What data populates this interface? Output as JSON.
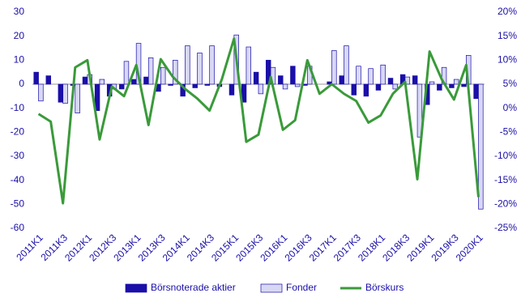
{
  "chart_data": {
    "type": "bar",
    "categories": [
      "2011K1",
      null,
      "2011K3",
      null,
      "2012K1",
      null,
      "2012K3",
      null,
      "2013K1",
      null,
      "2013K3",
      null,
      "2014K1",
      null,
      "2014K3",
      null,
      "2015K1",
      null,
      "2015K3",
      null,
      "2016K1",
      null,
      "2016K3",
      null,
      "2017K1",
      null,
      "2017K3",
      null,
      "2018K1",
      null,
      "2018K3",
      null,
      "2019K1",
      null,
      "2019K3",
      null,
      "2020K1"
    ],
    "series": [
      {
        "name": "Börsnoterade aktier",
        "type": "bar",
        "color": "#1a0fa8",
        "values": [
          5,
          3.5,
          -7.5,
          -0.5,
          3,
          -11,
          -5,
          -2,
          2,
          3,
          -3,
          -0.5,
          -5,
          -1.5,
          -0.5,
          -1,
          -4.5,
          -7.5,
          5,
          10,
          3.5,
          7.5,
          -0.5,
          0,
          1,
          3.5,
          -4.5,
          -5,
          -2.5,
          2.5,
          4,
          3.5,
          -8.5,
          -2.5,
          -1.5,
          -1,
          -6
        ]
      },
      {
        "name": "Fonder",
        "type": "bar",
        "color": "#d8d8f5",
        "values": [
          -7,
          0,
          -8,
          -12,
          4,
          2,
          -2,
          9.5,
          17,
          11,
          7,
          10,
          16,
          13,
          16,
          0,
          20.5,
          15.5,
          -4,
          7,
          -2,
          -1,
          7.5,
          0,
          14,
          16,
          7.5,
          6.5,
          8,
          -2,
          3,
          -22,
          1,
          7,
          2,
          12,
          -52
        ]
      },
      {
        "name": "Börskurs",
        "type": "line",
        "axis": "y2",
        "color": "#3a9a3a",
        "values": [
          -1.2,
          -2.8,
          -19.8,
          8.5,
          10,
          -6.5,
          4.5,
          2.5,
          9,
          -3.5,
          10.2,
          6.5,
          4,
          2,
          -0.5,
          6,
          14.5,
          -7,
          -5.5,
          6.5,
          -4.5,
          -2.5,
          10,
          3,
          5,
          3,
          1.5,
          -3,
          -1.5,
          3,
          5.5,
          -14.8,
          11.8,
          6,
          1.8,
          9,
          -18.5
        ]
      }
    ],
    "ylim": [
      -60,
      30
    ],
    "yticks": [
      -60,
      -50,
      -40,
      -30,
      -20,
      -10,
      0,
      10,
      20,
      30
    ],
    "y2lim": [
      -25,
      20
    ],
    "y2ticks": [
      {
        "value": -25,
        "label": "-25%"
      },
      {
        "value": -20,
        "label": "-20%"
      },
      {
        "value": -15,
        "label": "-15%"
      },
      {
        "value": -10,
        "label": "-10%"
      },
      {
        "value": -5,
        "label": "-5%"
      },
      {
        "value": 0,
        "label": "0%"
      },
      {
        "value": 5,
        "label": "5%"
      },
      {
        "value": 10,
        "label": "10%"
      },
      {
        "value": 15,
        "label": "15%"
      },
      {
        "value": 20,
        "label": "20%"
      }
    ],
    "legend": "bottom"
  }
}
